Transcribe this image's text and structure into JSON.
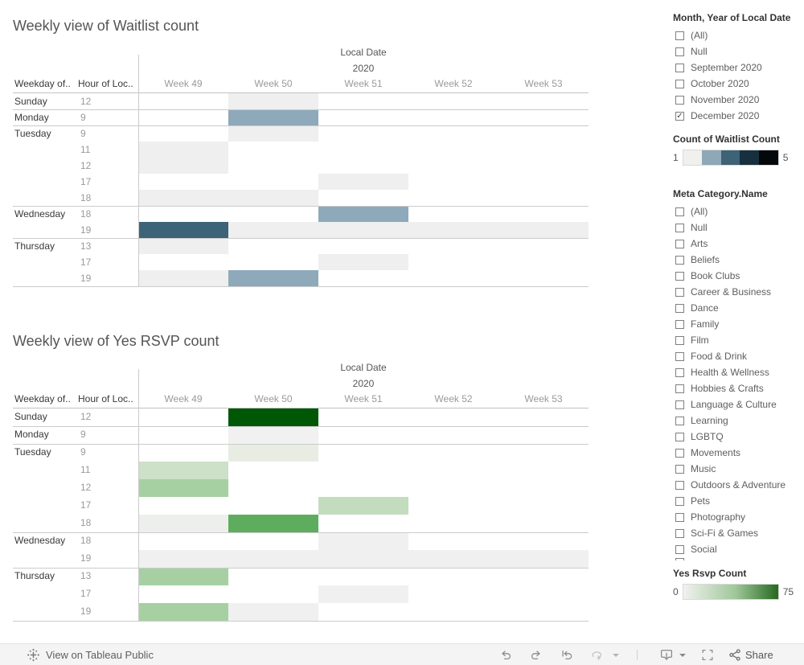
{
  "toolbar": {
    "view_label": "View on Tableau Public",
    "share_label": "Share",
    "icons": [
      "tableau-logo",
      "undo",
      "redo",
      "revert",
      "refresh",
      "download",
      "fullscreen",
      "share"
    ]
  },
  "sidebar": {
    "month_filter": {
      "title": "Month, Year of Local Date",
      "options": [
        {
          "label": "(All)",
          "checked": false
        },
        {
          "label": "Null",
          "checked": false
        },
        {
          "label": "September 2020",
          "checked": false
        },
        {
          "label": "October 2020",
          "checked": false
        },
        {
          "label": "November 2020",
          "checked": false
        },
        {
          "label": "December 2020",
          "checked": true
        }
      ]
    },
    "waitlist_legend": {
      "title": "Count of Waitlist Count",
      "min": "1",
      "max": "5",
      "swatches": [
        "#f0f0ee",
        "#8fa8b8",
        "#3e6276",
        "#16303f",
        "#05080a"
      ]
    },
    "category_filter": {
      "title": "Meta Category.Name",
      "options": [
        {
          "label": "(All)",
          "checked": false
        },
        {
          "label": "Null",
          "checked": false
        },
        {
          "label": "Arts",
          "checked": false
        },
        {
          "label": "Beliefs",
          "checked": false
        },
        {
          "label": "Book Clubs",
          "checked": false
        },
        {
          "label": "Career & Business",
          "checked": false
        },
        {
          "label": "Dance",
          "checked": false
        },
        {
          "label": "Family",
          "checked": false
        },
        {
          "label": "Film",
          "checked": false
        },
        {
          "label": "Food & Drink",
          "checked": false
        },
        {
          "label": "Health & Wellness",
          "checked": false
        },
        {
          "label": "Hobbies & Crafts",
          "checked": false
        },
        {
          "label": "Language & Culture",
          "checked": false
        },
        {
          "label": "Learning",
          "checked": false
        },
        {
          "label": "LGBTQ",
          "checked": false
        },
        {
          "label": "Movements",
          "checked": false
        },
        {
          "label": "Music",
          "checked": false
        },
        {
          "label": "Outdoors & Adventure",
          "checked": false
        },
        {
          "label": "Pets",
          "checked": false
        },
        {
          "label": "Photography",
          "checked": false
        },
        {
          "label": "Sci-Fi & Games",
          "checked": false
        },
        {
          "label": "Social",
          "checked": false
        }
      ]
    },
    "rsvp_legend": {
      "title": "Yes Rsvp Count",
      "min": "0",
      "max": "75",
      "gradient": [
        "#f0f2ee",
        "#9fc79a",
        "#26691f"
      ]
    }
  },
  "charts": [
    {
      "title": "Weekly view of Waitlist count",
      "col_header_1": "Weekday of..",
      "col_header_2": "Hour of Loc..",
      "axis_title": "Local Date",
      "axis_year": "2020",
      "columns": [
        "Week 49",
        "Week 50",
        "Week 51",
        "Week 52",
        "Week 53"
      ],
      "rows": [
        {
          "weekday": "Sunday",
          "hour": "12",
          "cells": [
            {
              "col": 1,
              "color": "#efefef",
              "value": 1
            }
          ]
        },
        {
          "weekday": "Monday",
          "hour": "9",
          "cells": [
            {
              "col": 1,
              "color": "#8ea9ba",
              "value": 2
            }
          ]
        },
        {
          "weekday": "Tuesday",
          "hour": "9",
          "cells": [
            {
              "col": 1,
              "color": "#efefef",
              "value": 1
            }
          ]
        },
        {
          "weekday": "Tuesday",
          "hour": "11",
          "cells": [
            {
              "col": 0,
              "color": "#efefef",
              "value": 1
            }
          ]
        },
        {
          "weekday": "Tuesday",
          "hour": "12",
          "cells": [
            {
              "col": 0,
              "color": "#efefef",
              "value": 1
            }
          ]
        },
        {
          "weekday": "Tuesday",
          "hour": "17",
          "cells": [
            {
              "col": 2,
              "color": "#efefef",
              "value": 1
            }
          ]
        },
        {
          "weekday": "Tuesday",
          "hour": "18",
          "cells": [
            {
              "col": 0,
              "color": "#efefef",
              "value": 1
            },
            {
              "col": 1,
              "color": "#efefef",
              "value": 1
            }
          ]
        },
        {
          "weekday": "Wednesday",
          "hour": "18",
          "cells": [
            {
              "col": 2,
              "color": "#8ea9ba",
              "value": 2
            }
          ]
        },
        {
          "weekday": "Wednesday",
          "hour": "19",
          "cells": [
            {
              "col": 0,
              "color": "#3d6378",
              "value": 3
            },
            {
              "col": 1,
              "color": "#efefef",
              "value": 1
            },
            {
              "col": 2,
              "color": "#efefef",
              "value": 1
            },
            {
              "col": 3,
              "color": "#efefef",
              "value": 1
            },
            {
              "col": 4,
              "color": "#efefef",
              "value": 1
            }
          ]
        },
        {
          "weekday": "Thursday",
          "hour": "13",
          "cells": [
            {
              "col": 0,
              "color": "#efefef",
              "value": 1
            }
          ]
        },
        {
          "weekday": "Thursday",
          "hour": "17",
          "cells": [
            {
              "col": 2,
              "color": "#efefef",
              "value": 1
            }
          ]
        },
        {
          "weekday": "Thursday",
          "hour": "19",
          "cells": [
            {
              "col": 0,
              "color": "#efefef",
              "value": 1
            },
            {
              "col": 1,
              "color": "#8ea9ba",
              "value": 2
            }
          ]
        }
      ]
    },
    {
      "title": "Weekly view of Yes RSVP count",
      "col_header_1": "Weekday of..",
      "col_header_2": "Hour of Loc..",
      "axis_title": "Local Date",
      "axis_year": "2020",
      "columns": [
        "Week 49",
        "Week 50",
        "Week 51",
        "Week 52",
        "Week 53"
      ],
      "rows": [
        {
          "weekday": "Sunday",
          "hour": "12",
          "cells": [
            {
              "col": 1,
              "color": "#005706",
              "value": 75
            }
          ]
        },
        {
          "weekday": "Monday",
          "hour": "9",
          "cells": [
            {
              "col": 1,
              "color": "#f0f1f0",
              "value": 1
            }
          ]
        },
        {
          "weekday": "Tuesday",
          "hour": "9",
          "cells": [
            {
              "col": 1,
              "color": "#e8ede4",
              "value": 5
            }
          ]
        },
        {
          "weekday": "Tuesday",
          "hour": "11",
          "cells": [
            {
              "col": 0,
              "color": "#cde0c8",
              "value": 15
            }
          ]
        },
        {
          "weekday": "Tuesday",
          "hour": "12",
          "cells": [
            {
              "col": 0,
              "color": "#a7d0a2",
              "value": 25
            }
          ]
        },
        {
          "weekday": "Tuesday",
          "hour": "17",
          "cells": [
            {
              "col": 2,
              "color": "#c3dcbe",
              "value": 15
            }
          ]
        },
        {
          "weekday": "Tuesday",
          "hour": "18",
          "cells": [
            {
              "col": 0,
              "color": "#edefec",
              "value": 2
            },
            {
              "col": 1,
              "color": "#5ead5f",
              "value": 45
            }
          ]
        },
        {
          "weekday": "Wednesday",
          "hour": "18",
          "cells": [
            {
              "col": 2,
              "color": "#f0f0f0",
              "value": 2
            }
          ]
        },
        {
          "weekday": "Wednesday",
          "hour": "19",
          "cells": [
            {
              "col": 0,
              "color": "#f0f0f0",
              "value": 2
            },
            {
              "col": 1,
              "color": "#f0f0f0",
              "value": 2
            },
            {
              "col": 2,
              "color": "#f0f0f0",
              "value": 2
            },
            {
              "col": 3,
              "color": "#f0f0f0",
              "value": 2
            },
            {
              "col": 4,
              "color": "#f0f0f0",
              "value": 2
            }
          ]
        },
        {
          "weekday": "Thursday",
          "hour": "13",
          "cells": [
            {
              "col": 0,
              "color": "#a7d0a2",
              "value": 25
            }
          ]
        },
        {
          "weekday": "Thursday",
          "hour": "17",
          "cells": [
            {
              "col": 2,
              "color": "#f0f0f0",
              "value": 2
            }
          ]
        },
        {
          "weekday": "Thursday",
          "hour": "19",
          "cells": [
            {
              "col": 0,
              "color": "#a7d0a2",
              "value": 25
            },
            {
              "col": 1,
              "color": "#f0f0f0",
              "value": 2
            }
          ]
        }
      ]
    }
  ],
  "chart_data": [
    {
      "type": "heatmap",
      "title": "Weekly view of Waitlist count",
      "x_group_label": "Local Date",
      "x_year": "2020",
      "x": [
        "Week 49",
        "Week 50",
        "Week 51",
        "Week 52",
        "Week 53"
      ],
      "row_labels": [
        "Sunday 12",
        "Monday 9",
        "Tuesday 9",
        "Tuesday 11",
        "Tuesday 12",
        "Tuesday 17",
        "Tuesday 18",
        "Wednesday 18",
        "Wednesday 19",
        "Thursday 13",
        "Thursday 17",
        "Thursday 19"
      ],
      "points": [
        {
          "row": "Sunday 12",
          "week": "Week 50",
          "value": 1
        },
        {
          "row": "Monday 9",
          "week": "Week 50",
          "value": 2
        },
        {
          "row": "Tuesday 9",
          "week": "Week 50",
          "value": 1
        },
        {
          "row": "Tuesday 11",
          "week": "Week 49",
          "value": 1
        },
        {
          "row": "Tuesday 12",
          "week": "Week 49",
          "value": 1
        },
        {
          "row": "Tuesday 17",
          "week": "Week 51",
          "value": 1
        },
        {
          "row": "Tuesday 18",
          "week": "Week 49",
          "value": 1
        },
        {
          "row": "Tuesday 18",
          "week": "Week 50",
          "value": 1
        },
        {
          "row": "Wednesday 18",
          "week": "Week 51",
          "value": 2
        },
        {
          "row": "Wednesday 19",
          "week": "Week 49",
          "value": 3
        },
        {
          "row": "Wednesday 19",
          "week": "Week 50",
          "value": 1
        },
        {
          "row": "Wednesday 19",
          "week": "Week 51",
          "value": 1
        },
        {
          "row": "Wednesday 19",
          "week": "Week 52",
          "value": 1
        },
        {
          "row": "Wednesday 19",
          "week": "Week 53",
          "value": 1
        },
        {
          "row": "Thursday 13",
          "week": "Week 49",
          "value": 1
        },
        {
          "row": "Thursday 17",
          "week": "Week 51",
          "value": 1
        },
        {
          "row": "Thursday 19",
          "week": "Week 49",
          "value": 1
        },
        {
          "row": "Thursday 19",
          "week": "Week 50",
          "value": 2
        }
      ],
      "color_scale": {
        "label": "Count of Waitlist Count",
        "min": 1,
        "max": 5,
        "style": "stepped blue-to-black, gray at minimum"
      },
      "note": "values estimated from legend color steps"
    },
    {
      "type": "heatmap",
      "title": "Weekly view of Yes RSVP count",
      "x_group_label": "Local Date",
      "x_year": "2020",
      "x": [
        "Week 49",
        "Week 50",
        "Week 51",
        "Week 52",
        "Week 53"
      ],
      "row_labels": [
        "Sunday 12",
        "Monday 9",
        "Tuesday 9",
        "Tuesday 11",
        "Tuesday 12",
        "Tuesday 17",
        "Tuesday 18",
        "Wednesday 18",
        "Wednesday 19",
        "Thursday 13",
        "Thursday 17",
        "Thursday 19"
      ],
      "points": [
        {
          "row": "Sunday 12",
          "week": "Week 50",
          "value": 75
        },
        {
          "row": "Monday 9",
          "week": "Week 50",
          "value": 1
        },
        {
          "row": "Tuesday 9",
          "week": "Week 50",
          "value": 5
        },
        {
          "row": "Tuesday 11",
          "week": "Week 49",
          "value": 15
        },
        {
          "row": "Tuesday 12",
          "week": "Week 49",
          "value": 25
        },
        {
          "row": "Tuesday 17",
          "week": "Week 51",
          "value": 15
        },
        {
          "row": "Tuesday 18",
          "week": "Week 49",
          "value": 2
        },
        {
          "row": "Tuesday 18",
          "week": "Week 50",
          "value": 45
        },
        {
          "row": "Wednesday 18",
          "week": "Week 51",
          "value": 2
        },
        {
          "row": "Wednesday 19",
          "week": "Week 49",
          "value": 2
        },
        {
          "row": "Wednesday 19",
          "week": "Week 50",
          "value": 2
        },
        {
          "row": "Wednesday 19",
          "week": "Week 51",
          "value": 2
        },
        {
          "row": "Wednesday 19",
          "week": "Week 52",
          "value": 2
        },
        {
          "row": "Wednesday 19",
          "week": "Week 53",
          "value": 2
        },
        {
          "row": "Thursday 13",
          "week": "Week 49",
          "value": 25
        },
        {
          "row": "Thursday 17",
          "week": "Week 51",
          "value": 2
        },
        {
          "row": "Thursday 19",
          "week": "Week 49",
          "value": 25
        },
        {
          "row": "Thursday 19",
          "week": "Week 50",
          "value": 2
        }
      ],
      "color_scale": {
        "label": "Yes Rsvp Count",
        "min": 0,
        "max": 75,
        "style": "continuous white-to-dark-green gradient"
      },
      "note": "values estimated from legend gradient"
    }
  ]
}
